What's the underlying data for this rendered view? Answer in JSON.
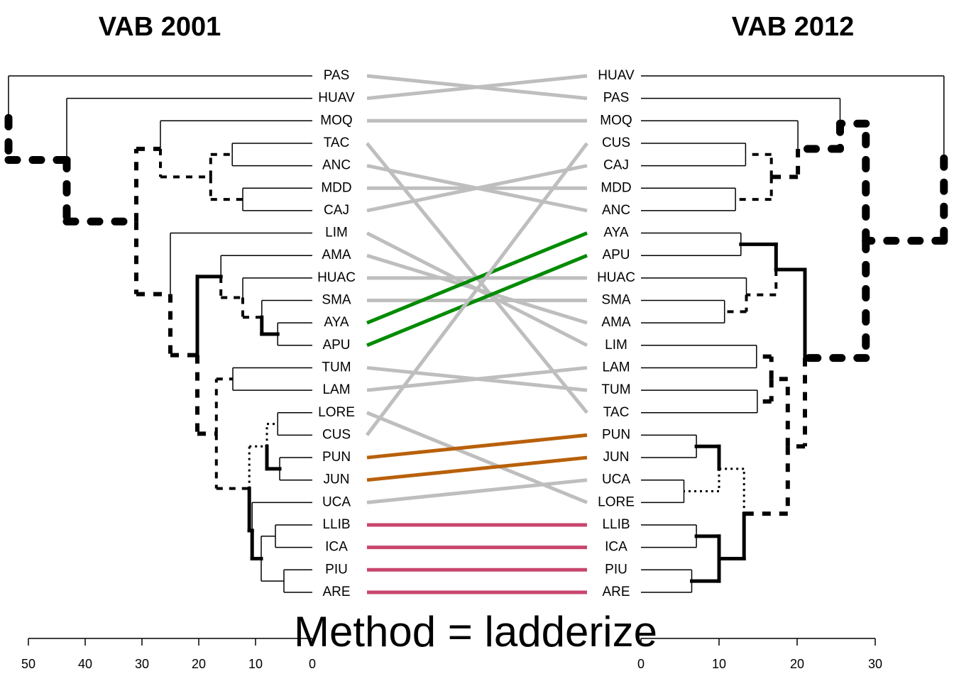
{
  "chart_data": {
    "type": "tanglegram",
    "title": "Method = ladderize",
    "connector_colors": [
      "#BEBEBE",
      "#BEBEBE",
      "#BEBEBE",
      "#BEBEBE",
      "#BEBEBE",
      "#BEBEBE",
      "#BEBEBE",
      "#BEBEBE",
      "#BEBEBE",
      "#BEBEBE",
      "#BEBEBE",
      "#008B00",
      "#008B00",
      "#BEBEBE",
      "#BEBEBE",
      "#BEBEBE",
      "#BEBEBE",
      "#B8600A",
      "#B8600A",
      "#BEBEBE",
      "#C8466E",
      "#C8466E",
      "#C8466E",
      "#C8466E"
    ],
    "left": {
      "title": "VAB 2001",
      "xlim": [
        50,
        0
      ],
      "xticks": [
        50,
        40,
        30,
        20,
        10,
        0
      ],
      "tree": {
        "height": 53.5,
        "edges": [
          "solid",
          "dashed-heavy"
        ],
        "children": [
          "PAS",
          {
            "height": 43.25,
            "edges": [
              "solid",
              "dashed-heavy"
            ],
            "children": [
              "HUAV",
              {
                "height": 31,
                "edges": [
                  "dashed",
                  "dashed"
                ],
                "children": [
                  {
                    "height": 26.75,
                    "edges": [
                      "solid",
                      "dashed-thin"
                    ],
                    "children": [
                      "MOQ",
                      {
                        "height": 17.9,
                        "edges": [
                          "dashed-thin",
                          "dashed-thin"
                        ],
                        "children": [
                          {
                            "height": 14.1,
                            "edges": [
                              "solid",
                              "solid"
                            ],
                            "children": [
                              "TAC",
                              "ANC"
                            ]
                          },
                          {
                            "height": 12.25,
                            "edges": [
                              "solid",
                              "solid"
                            ],
                            "children": [
                              "MDD",
                              "CAJ"
                            ]
                          }
                        ]
                      }
                    ]
                  },
                  {
                    "height": 25,
                    "edges": [
                      "solid",
                      "dashed"
                    ],
                    "children": [
                      "LIM",
                      {
                        "height": 20.25,
                        "edges": [
                          "thick",
                          "dashed"
                        ],
                        "children": [
                          {
                            "height": 16.1,
                            "edges": [
                              "solid",
                              "dashed-thin"
                            ],
                            "children": [
                              "AMA",
                              {
                                "height": 12.25,
                                "edges": [
                                  "solid",
                                  "dashed-thin"
                                ],
                                "children": [
                                  "HUAC",
                                  {
                                    "height": 8.9,
                                    "edges": [
                                      "solid",
                                      "thick"
                                    ],
                                    "children": [
                                      "SMA",
                                      {
                                        "height": 6.1,
                                        "edges": [
                                          "solid",
                                          "solid"
                                        ],
                                        "children": [
                                          "AYA",
                                          "APU"
                                        ]
                                      }
                                    ]
                                  }
                                ]
                              }
                            ]
                          },
                          {
                            "height": 16.9,
                            "edges": [
                              "dashed-thin",
                              "dashed-thin"
                            ],
                            "children": [
                              {
                                "height": 14,
                                "edges": [
                                  "solid",
                                  "solid"
                                ],
                                "children": [
                                  "TUM",
                                  "LAM"
                                ]
                              },
                              {
                                "height": 11.1,
                                "edges": [
                                  "dotted",
                                  "thick"
                                ],
                                "children": [
                                  {
                                    "height": 8,
                                    "edges": [
                                      "dotted",
                                      "thick"
                                    ],
                                    "children": [
                                      {
                                        "height": 6.1,
                                        "edges": [
                                          "solid",
                                          "solid"
                                        ],
                                        "children": [
                                          "LORE",
                                          "CUS"
                                        ]
                                      },
                                      {
                                        "height": 5.75,
                                        "edges": [
                                          "solid",
                                          "solid"
                                        ],
                                        "children": [
                                          "PUN",
                                          "JUN"
                                        ]
                                      }
                                    ]
                                  },
                                  {
                                    "height": 10.6,
                                    "edges": [
                                      "solid",
                                      "thick"
                                    ],
                                    "children": [
                                      "UCA",
                                      {
                                        "height": 9,
                                        "edges": [
                                          "solid",
                                          "solid"
                                        ],
                                        "children": [
                                          {
                                            "height": 6.5,
                                            "edges": [
                                              "solid",
                                              "solid"
                                            ],
                                            "children": [
                                              "LLIB",
                                              "ICA"
                                            ]
                                          },
                                          {
                                            "height": 5,
                                            "edges": [
                                              "solid",
                                              "solid"
                                            ],
                                            "children": [
                                              "PIU",
                                              "ARE"
                                            ]
                                          }
                                        ]
                                      }
                                    ]
                                  }
                                ]
                              }
                            ]
                          }
                        ]
                      }
                    ]
                  }
                ]
              }
            ]
          }
        ]
      }
    },
    "right": {
      "title": "VAB 2012",
      "xlim": [
        0,
        30
      ],
      "xticks": [
        0,
        10,
        20,
        30
      ],
      "tree": {
        "height": 38.8,
        "edges": [
          "solid",
          "dashed-heavy"
        ],
        "children": [
          "HUAV",
          {
            "height": 28.8,
            "edges": [
              "dashed-heavy",
              "dashed-heavy"
            ],
            "children": [
              {
                "height": 25.5,
                "edges": [
                  "solid",
                  "dashed-heavy"
                ],
                "children": [
                  "PAS",
                  {
                    "height": 20.1,
                    "edges": [
                      "solid",
                      "dashed"
                    ],
                    "children": [
                      "MOQ",
                      {
                        "height": 16.7,
                        "edges": [
                          "dashed-thin",
                          "dashed-thin"
                        ],
                        "children": [
                          {
                            "height": 13.4,
                            "edges": [
                              "solid",
                              "solid"
                            ],
                            "children": [
                              "CUS",
                              "CAJ"
                            ]
                          },
                          {
                            "height": 12.1,
                            "edges": [
                              "solid",
                              "solid"
                            ],
                            "children": [
                              "MDD",
                              "ANC"
                            ]
                          }
                        ]
                      }
                    ]
                  }
                ]
              },
              {
                "height": 21,
                "edges": [
                  "thick",
                  "dashed"
                ],
                "children": [
                  {
                    "height": 17.3,
                    "edges": [
                      "thick",
                      "dashed-thin"
                    ],
                    "children": [
                      {
                        "height": 12.8,
                        "edges": [
                          "solid",
                          "solid"
                        ],
                        "children": [
                          "AYA",
                          "APU"
                        ]
                      },
                      {
                        "height": 13.5,
                        "edges": [
                          "solid",
                          "dashed-thin"
                        ],
                        "children": [
                          "HUAC",
                          {
                            "height": 10.7,
                            "edges": [
                              "solid",
                              "solid"
                            ],
                            "children": [
                              "SMA",
                              "AMA"
                            ]
                          }
                        ]
                      }
                    ]
                  },
                  {
                    "height": 18.8,
                    "edges": [
                      "dashed",
                      "dashed"
                    ],
                    "children": [
                      {
                        "height": 16.7,
                        "edges": [
                          "dashed",
                          "dashed"
                        ],
                        "children": [
                          {
                            "height": 14.8,
                            "edges": [
                              "solid",
                              "solid"
                            ],
                            "children": [
                              "LIM",
                              "LAM"
                            ]
                          },
                          {
                            "height": 14.9,
                            "edges": [
                              "solid",
                              "solid"
                            ],
                            "children": [
                              "TUM",
                              "TAC"
                            ]
                          }
                        ]
                      },
                      {
                        "height": 13.2,
                        "edges": [
                          "dotted",
                          "thick"
                        ],
                        "children": [
                          {
                            "height": 10,
                            "edges": [
                              "thick",
                              "dotted"
                            ],
                            "children": [
                              {
                                "height": 7.1,
                                "edges": [
                                  "solid",
                                  "solid"
                                ],
                                "children": [
                                  "PUN",
                                  "JUN"
                                ]
                              },
                              {
                                "height": 5.5,
                                "edges": [
                                  "solid",
                                  "solid"
                                ],
                                "children": [
                                  "UCA",
                                  "LORE"
                                ]
                              }
                            ]
                          },
                          {
                            "height": 10,
                            "edges": [
                              "thick",
                              "thick"
                            ],
                            "children": [
                              {
                                "height": 7.1,
                                "edges": [
                                  "solid",
                                  "solid"
                                ],
                                "children": [
                                  "LLIB",
                                  "ICA"
                                ]
                              },
                              {
                                "height": 6.5,
                                "edges": [
                                  "solid",
                                  "solid"
                                ],
                                "children": [
                                  "PIU",
                                  "ARE"
                                ]
                              }
                            ]
                          }
                        ]
                      }
                    ]
                  }
                ]
              }
            ]
          }
        ]
      }
    }
  }
}
